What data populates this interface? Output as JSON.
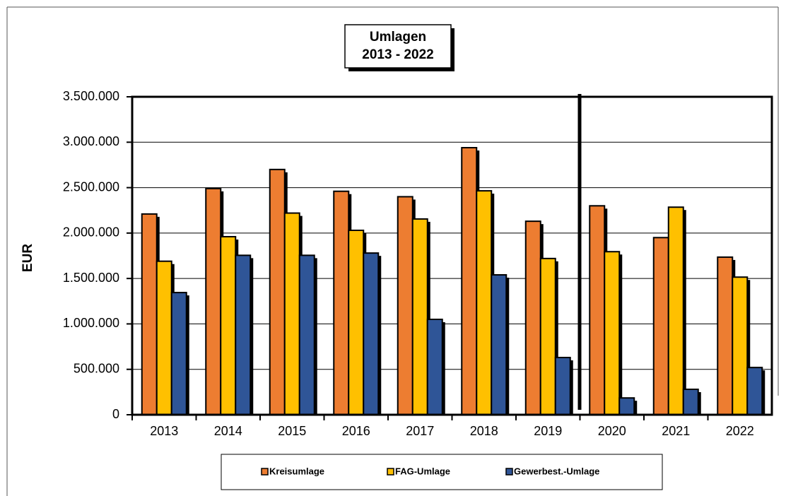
{
  "chart_data": {
    "type": "bar",
    "title": "Umlagen",
    "subtitle": "2013 - 2022",
    "y_label": "EUR",
    "categories": [
      "2013",
      "2014",
      "2015",
      "2016",
      "2017",
      "2018",
      "2019",
      "2020",
      "2021",
      "2022"
    ],
    "series": [
      {
        "name": "Kreisumlage",
        "color": "#ed7d31",
        "values": [
          2210000,
          2490000,
          2700000,
          2460000,
          2400000,
          2940000,
          2130000,
          2300000,
          1950000,
          1735000
        ]
      },
      {
        "name": "FAG-Umlage",
        "color": "#ffc000",
        "values": [
          1690000,
          1960000,
          2220000,
          2030000,
          2155000,
          2465000,
          1720000,
          1795000,
          2285000,
          1515000
        ]
      },
      {
        "name": "Gewerbest.-Umlage",
        "color": "#2f5597",
        "values": [
          1345000,
          1755000,
          1755000,
          1780000,
          1050000,
          1540000,
          630000,
          185000,
          280000,
          520000
        ]
      }
    ],
    "ylim": [
      0,
      3500000
    ],
    "yticks": [
      0,
      {
        "value": 500000,
        "label": "500.000"
      },
      {
        "value": 1000000,
        "label": "1.000.000"
      },
      {
        "value": 1500000,
        "label": "1.500.000"
      },
      {
        "value": 2000000,
        "label": "2.000.000"
      },
      {
        "value": 2500000,
        "label": "2.500.000"
      },
      {
        "value": 3000000,
        "label": "3.000.000"
      },
      {
        "value": 3500000,
        "label": "3.500.000"
      }
    ],
    "grid": true,
    "legend": "bottom"
  }
}
